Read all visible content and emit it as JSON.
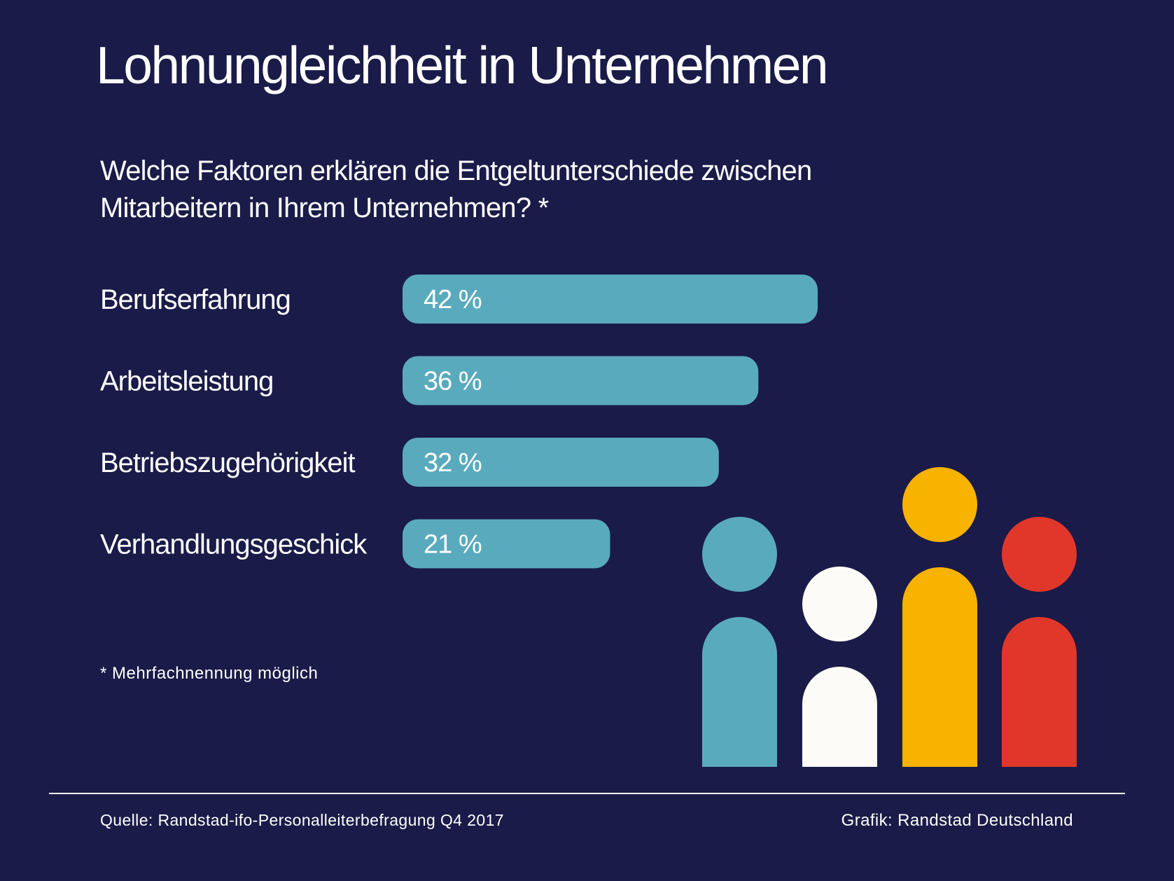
{
  "header": {
    "title": "Lohnungleichheit in Unternehmen",
    "subtitle": "Welche Faktoren erklären die Entgeltunterschiede zwischen Mitarbeitern in Ihrem Unternehmen? *"
  },
  "chart_data": {
    "type": "bar",
    "orientation": "horizontal",
    "categories": [
      "Berufserfahrung",
      "Arbeitsleistung",
      "Betriebszugehörigkeit",
      "Verhandlungsgeschick"
    ],
    "values": [
      42,
      36,
      32,
      21
    ],
    "value_labels": [
      "42 %",
      "36 %",
      "32 %",
      "21 %"
    ],
    "unit": "%",
    "title": "Lohnungleichheit in Unternehmen",
    "subtitle": "Welche Faktoren erklären die Entgeltunterschiede zwischen Mitarbeitern in Ihrem Unternehmen? *",
    "xlabel": "",
    "ylabel": "",
    "bar_color": "#5aaabd",
    "grid": false,
    "legend": "none"
  },
  "footnote": "* Mehrfachnennung möglich",
  "footer": {
    "source": "Quelle: Randstad-ifo-Personalleiterbefragung Q4 2017",
    "credit": "Grafik: Randstad Deutschland"
  },
  "colors": {
    "background": "#1a1b48",
    "bar": "#5aaabd",
    "text": "#ffffff",
    "figure_teal": "#5aaabd",
    "figure_white": "#fdfbf7",
    "figure_yellow": "#f8b200",
    "figure_red": "#e1372b"
  },
  "illustration": {
    "icon": "people-group-icon",
    "figures": [
      {
        "name": "person-teal-icon",
        "color": "#5aaabd"
      },
      {
        "name": "person-white-icon",
        "color": "#fdfbf7"
      },
      {
        "name": "person-yellow-icon",
        "color": "#f8b200"
      },
      {
        "name": "person-red-icon",
        "color": "#e1372b"
      }
    ]
  }
}
